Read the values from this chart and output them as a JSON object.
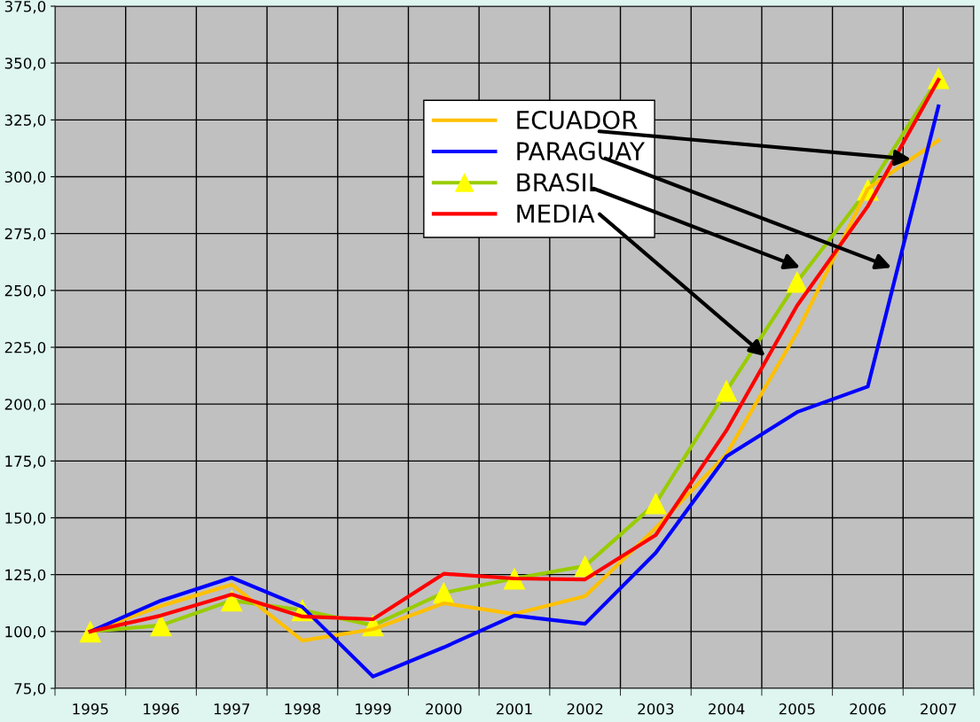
{
  "chart_data": {
    "type": "line",
    "categories": [
      "1995",
      "1996",
      "1997",
      "1998",
      "1999",
      "2000",
      "2001",
      "2002",
      "2003",
      "2004",
      "2005",
      "2006",
      "2007"
    ],
    "series": [
      {
        "name": "ECUADOR",
        "color": "#ffc000",
        "marker": "none",
        "values": [
          100,
          111.2,
          120.6,
          96,
          101,
          112.4,
          107.7,
          115.5,
          145.5,
          178,
          231.6,
          294.7,
          316
        ]
      },
      {
        "name": "PARAGUAY",
        "color": "#0000ff",
        "marker": "none",
        "values": [
          100,
          113.6,
          123.7,
          110.8,
          80.2,
          93,
          107,
          103.4,
          134.6,
          177,
          196.5,
          207.7,
          331
        ]
      },
      {
        "name": "BRASIL",
        "color": "#99cc00",
        "marker": "triangle",
        "colors": [
          "#ffff00",
          "#ffff00",
          "#ffff00",
          "#ffff00",
          "#ffff00",
          "#ffff00",
          "#ffff00",
          "#ffff00",
          "#ffff00",
          "#ffff00",
          "#ffff00",
          "#ffff00",
          "#ffff00"
        ],
        "values": [
          100,
          102.7,
          113.6,
          109.4,
          102.7,
          117,
          123.3,
          128.8,
          156.4,
          205.9,
          253.8,
          294.3,
          343.4
        ]
      },
      {
        "name": "MEDIA",
        "color": "#ff0000",
        "marker": "none",
        "values": [
          100,
          107,
          116.3,
          106.6,
          105.4,
          125.4,
          123.3,
          122.9,
          142.4,
          188.4,
          243.3,
          287,
          342.6
        ]
      }
    ],
    "ylim": [
      75,
      375
    ],
    "yticks": [
      {
        "value": 75,
        "label": "75,0"
      },
      {
        "value": 100,
        "label": "100,0"
      },
      {
        "value": 125,
        "label": "125,0"
      },
      {
        "value": 150,
        "label": "150,0"
      },
      {
        "value": 175,
        "label": "175,0"
      },
      {
        "value": 200,
        "label": "200,0"
      },
      {
        "value": 225,
        "label": "225,0"
      },
      {
        "value": 250,
        "label": "250,0"
      },
      {
        "value": 275,
        "label": "275,0"
      },
      {
        "value": 300,
        "label": "300,0"
      },
      {
        "value": 325,
        "label": "325,0"
      },
      {
        "value": 350,
        "label": "350,0"
      },
      {
        "value": 375,
        "label": "375,0"
      }
    ],
    "grid": true,
    "legend": "top center",
    "line_style": "solid"
  }
}
